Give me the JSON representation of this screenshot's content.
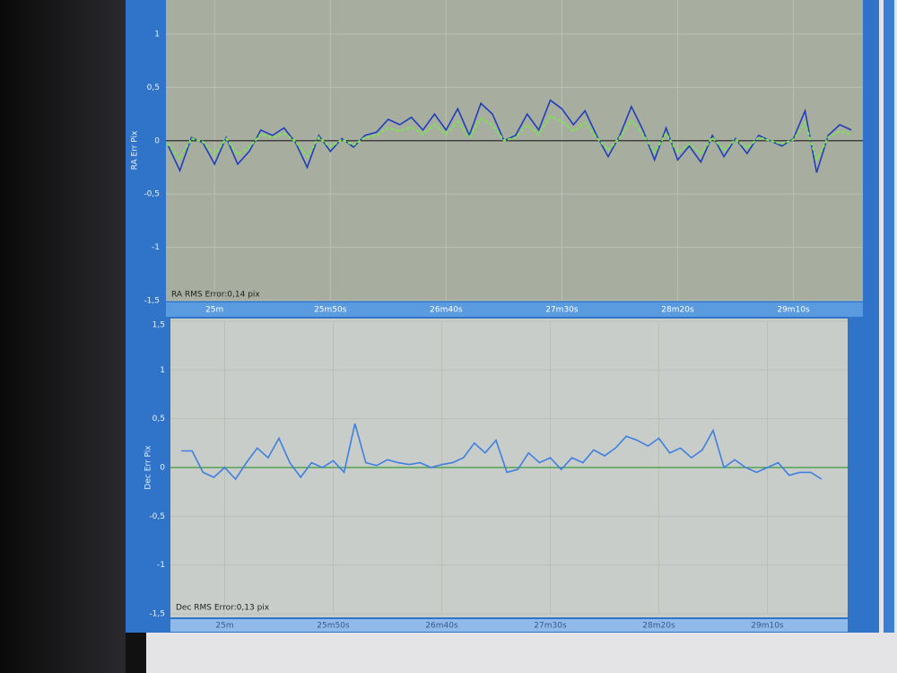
{
  "chart_data": [
    {
      "type": "line",
      "y_label": "RA Err Pix",
      "annotation": "RA RMS Error:0,14 pix",
      "x": [
        1480,
        1485,
        1490,
        1495,
        1500,
        1505,
        1510,
        1515,
        1520,
        1525,
        1530,
        1535,
        1540,
        1545,
        1550,
        1555,
        1560,
        1565,
        1570,
        1575,
        1580,
        1585,
        1590,
        1595,
        1600,
        1605,
        1610,
        1615,
        1620,
        1625,
        1630,
        1635,
        1640,
        1645,
        1650,
        1655,
        1660,
        1665,
        1670,
        1675,
        1680,
        1685,
        1690,
        1695,
        1700,
        1705,
        1710,
        1715,
        1720,
        1725,
        1730,
        1735,
        1740,
        1745,
        1750,
        1755,
        1760,
        1765,
        1770,
        1775
      ],
      "xlim": [
        1479,
        1780
      ],
      "xticks": [
        {
          "value": 1500,
          "label": "25m"
        },
        {
          "value": 1550,
          "label": "25m50s"
        },
        {
          "value": 1600,
          "label": "26m40s"
        },
        {
          "value": 1650,
          "label": "27m30s"
        },
        {
          "value": 1700,
          "label": "28m20s"
        },
        {
          "value": 1750,
          "label": "29m10s"
        }
      ],
      "ylim": [
        -1.5,
        1.32
      ],
      "yticks": [
        {
          "value": 1,
          "label": "1"
        },
        {
          "value": 0.5,
          "label": "0,5"
        },
        {
          "value": 0,
          "label": "0"
        },
        {
          "value": -0.5,
          "label": "-0,5"
        },
        {
          "value": -1,
          "label": "-1"
        },
        {
          "value": -1.5,
          "label": "-1,5"
        }
      ],
      "grid": true,
      "zero_line_color": "#1a1a1a",
      "series": [
        {
          "color": "#1f3fb8",
          "style": "solid",
          "values": [
            -0.05,
            -0.28,
            0.03,
            -0.02,
            -0.22,
            0.03,
            -0.22,
            -0.1,
            0.1,
            0.05,
            0.12,
            -0.02,
            -0.25,
            0.05,
            -0.1,
            0.02,
            -0.06,
            0.05,
            0.08,
            0.2,
            0.15,
            0.22,
            0.1,
            0.25,
            0.1,
            0.3,
            0.05,
            0.35,
            0.25,
            0.0,
            0.05,
            0.25,
            0.1,
            0.38,
            0.3,
            0.15,
            0.28,
            0.05,
            -0.15,
            0.05,
            0.32,
            0.1,
            -0.18,
            0.12,
            -0.18,
            -0.05,
            -0.2,
            0.05,
            -0.15,
            0.02,
            -0.12,
            0.05,
            0.0,
            -0.05,
            0.02,
            0.28,
            -0.3,
            0.05,
            0.15,
            0.1
          ]
        },
        {
          "color": "#7ee05a",
          "style": "dotted",
          "values": [
            -0.03,
            -0.17,
            0.02,
            -0.01,
            -0.13,
            0.02,
            -0.13,
            -0.06,
            0.06,
            0.03,
            0.07,
            -0.01,
            -0.15,
            0.03,
            -0.06,
            0.01,
            -0.04,
            0.03,
            0.05,
            0.12,
            0.09,
            0.13,
            0.06,
            0.15,
            0.06,
            0.18,
            0.03,
            0.21,
            0.15,
            0.0,
            0.03,
            0.15,
            0.06,
            0.23,
            0.18,
            0.09,
            0.17,
            0.03,
            -0.09,
            0.03,
            0.19,
            0.06,
            -0.11,
            0.07,
            -0.11,
            -0.03,
            -0.12,
            0.03,
            -0.09,
            0.01,
            -0.07,
            0.03,
            0.0,
            -0.03,
            0.01,
            0.17,
            -0.18,
            0.03,
            0.09,
            0.06
          ]
        }
      ]
    },
    {
      "type": "line",
      "y_label": "Dec Err Pix",
      "annotation": "Dec RMS Error:0,13 pix",
      "x": [
        1480,
        1485,
        1490,
        1495,
        1500,
        1505,
        1510,
        1515,
        1520,
        1525,
        1530,
        1535,
        1540,
        1545,
        1550,
        1555,
        1560,
        1565,
        1570,
        1575,
        1580,
        1585,
        1590,
        1595,
        1600,
        1605,
        1610,
        1615,
        1620,
        1625,
        1630,
        1635,
        1640,
        1645,
        1650,
        1655,
        1660,
        1665,
        1670,
        1675,
        1680,
        1685,
        1690,
        1695,
        1700,
        1705,
        1710,
        1715,
        1720,
        1725,
        1730,
        1735,
        1740,
        1745,
        1750,
        1755,
        1760,
        1765,
        1770,
        1775
      ],
      "xlim": [
        1475,
        1787
      ],
      "xticks": [
        {
          "value": 1500,
          "label": "25m"
        },
        {
          "value": 1550,
          "label": "25m50s"
        },
        {
          "value": 1600,
          "label": "26m40s"
        },
        {
          "value": 1650,
          "label": "27m30s"
        },
        {
          "value": 1700,
          "label": "28m20s"
        },
        {
          "value": 1750,
          "label": "29m10s"
        }
      ],
      "ylim": [
        -1.5,
        1.5
      ],
      "yticks": [
        {
          "value": 1.5,
          "label": "1,5"
        },
        {
          "value": 1,
          "label": "1"
        },
        {
          "value": 0.5,
          "label": "0,5"
        },
        {
          "value": 0,
          "label": "0"
        },
        {
          "value": -0.5,
          "label": "-0,5"
        },
        {
          "value": -1,
          "label": "-1"
        },
        {
          "value": -1.5,
          "label": "-1,5"
        }
      ],
      "grid": true,
      "zero_line_color": "#3a9a3a",
      "series": [
        {
          "color": "#3f7fe0",
          "style": "solid",
          "values": [
            0.17,
            0.17,
            -0.05,
            -0.1,
            0.0,
            -0.12,
            0.05,
            0.2,
            0.1,
            0.3,
            0.05,
            -0.1,
            0.05,
            0.0,
            0.07,
            -0.05,
            0.45,
            0.05,
            0.02,
            0.08,
            0.05,
            0.03,
            0.05,
            0.0,
            0.03,
            0.05,
            0.1,
            0.25,
            0.15,
            0.28,
            -0.05,
            -0.02,
            0.15,
            0.05,
            0.1,
            -0.02,
            0.1,
            0.05,
            0.18,
            0.12,
            0.2,
            0.32,
            0.28,
            0.22,
            0.3,
            0.15,
            0.2,
            0.1,
            0.18,
            0.38,
            0.0,
            0.08,
            0.0,
            -0.05,
            0.0,
            0.05,
            -0.08,
            -0.05,
            -0.05,
            -0.12
          ]
        }
      ]
    }
  ]
}
